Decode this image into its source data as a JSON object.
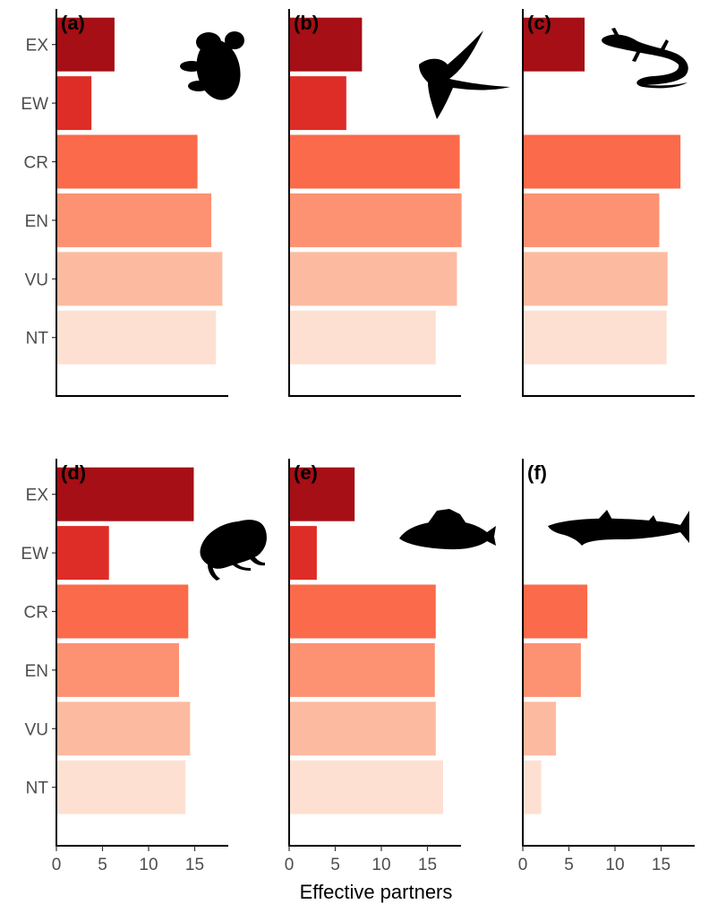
{
  "chart_data": {
    "type": "bar",
    "orientation": "horizontal",
    "xlabel": "Effective partners",
    "categories": [
      "EX",
      "EW",
      "CR",
      "EN",
      "VU",
      "NT"
    ],
    "category_colors": {
      "EX": "#a50f15",
      "EW": "#de2d26",
      "CR": "#fb6a4a",
      "EN": "#fc9272",
      "VU": "#fcbba1",
      "NT": "#fee0d2"
    },
    "xlim": [
      0,
      18.5
    ],
    "xticks": [
      0,
      5,
      10,
      15
    ],
    "grid": false,
    "legend": "none",
    "panels": [
      {
        "label": "(a)",
        "icon": "koala-silhouette-icon",
        "values": [
          6.3,
          3.8,
          15.3,
          16.8,
          18.0,
          17.3
        ]
      },
      {
        "label": "(b)",
        "icon": "bird-silhouette-icon",
        "values": [
          7.9,
          6.2,
          18.5,
          18.7,
          18.2,
          15.9
        ]
      },
      {
        "label": "(c)",
        "icon": "lizard-silhouette-icon",
        "values": [
          6.7,
          null,
          17.1,
          14.8,
          15.7,
          15.6
        ]
      },
      {
        "label": "(d)",
        "icon": "frog-silhouette-icon",
        "values": [
          14.9,
          5.7,
          14.3,
          13.3,
          14.5,
          14.0
        ]
      },
      {
        "label": "(e)",
        "icon": "fish-silhouette-icon",
        "values": [
          7.1,
          3.0,
          15.9,
          15.8,
          15.9,
          16.7
        ]
      },
      {
        "label": "(f)",
        "icon": "shark-silhouette-icon",
        "values": [
          null,
          null,
          7.0,
          6.3,
          3.6,
          2.0
        ]
      }
    ]
  }
}
